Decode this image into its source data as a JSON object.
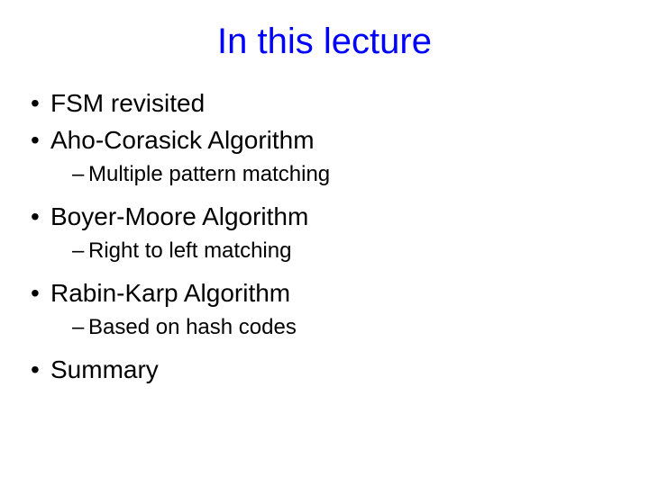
{
  "title": {
    "text": "In this lecture",
    "color": "#0000ff",
    "fontsize": 40
  },
  "body_color": "#000000",
  "items": {
    "i1": "FSM revisited",
    "i2": "Aho-Corasick Algorithm",
    "i2a": "Multiple pattern matching",
    "i3": "Boyer-Moore Algorithm",
    "i3a": "Right to left matching",
    "i4": "Rabin-Karp Algorithm",
    "i4a": "Based on hash codes",
    "i5": "Summary"
  },
  "bullets": {
    "level1": "•",
    "level2": "–"
  },
  "background_color": "#ffffff"
}
